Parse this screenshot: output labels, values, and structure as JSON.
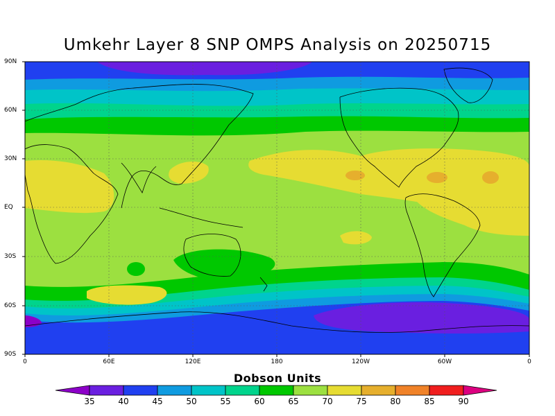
{
  "title": "Umkehr Layer 8 SNP OMPS Analysis on 20250715",
  "lat_labels": [
    "90N",
    "60N",
    "30N",
    "EQ",
    "30S",
    "60S",
    "90S"
  ],
  "lon_labels": [
    "0",
    "60E",
    "120E",
    "180",
    "120W",
    "60W",
    "0"
  ],
  "colorbar": {
    "title": "Dobson Units",
    "ticks": [
      "35",
      "40",
      "45",
      "50",
      "55",
      "60",
      "65",
      "70",
      "75",
      "80",
      "85",
      "90"
    ],
    "colors": [
      "#8c00c8",
      "#6a1fe0",
      "#2040f0",
      "#0f9be0",
      "#00c4c8",
      "#00d48c",
      "#00c800",
      "#9ce040",
      "#e6dc32",
      "#e6af2d",
      "#f08228",
      "#f01e1e",
      "#dc0080"
    ]
  }
}
